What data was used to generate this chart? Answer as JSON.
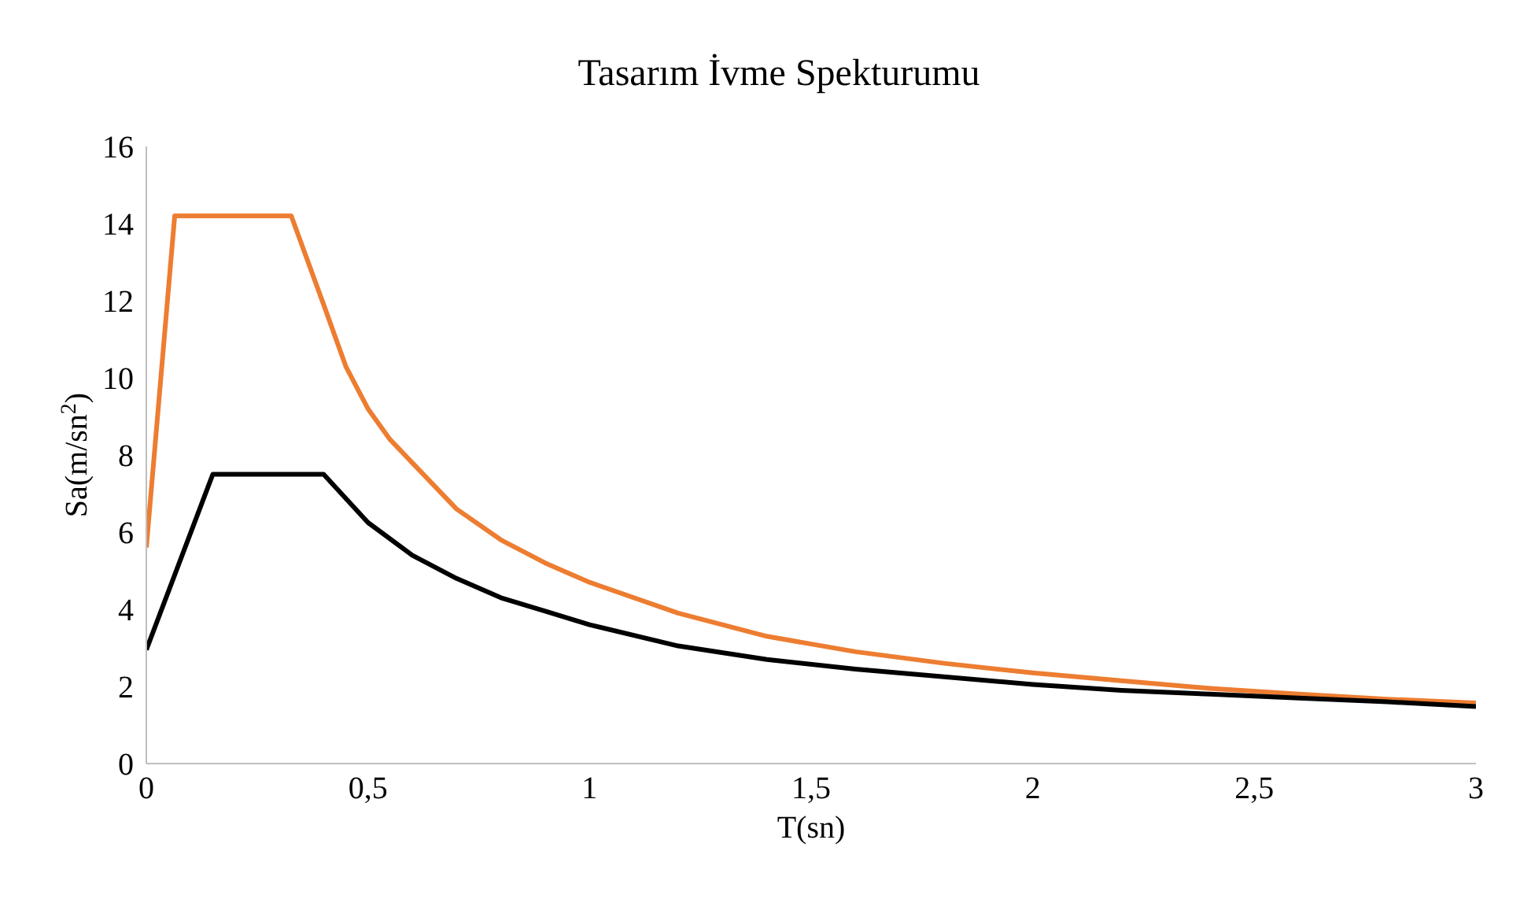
{
  "chart_data": {
    "type": "line",
    "title": "Tasarım İvme Spekturumu",
    "xlabel": "T(sn)",
    "ylabel": "Sa(m/sn$^{2}$)",
    "xlim": [
      0,
      3
    ],
    "ylim": [
      0,
      16
    ],
    "xticks": [
      0,
      {
        "value": 0.5,
        "label": "0,5"
      },
      1,
      {
        "value": 1.5,
        "label": "1,5"
      },
      2,
      {
        "value": 2.5,
        "label": "2,5"
      },
      3
    ],
    "yticks": [
      0,
      2,
      4,
      6,
      8,
      10,
      12,
      14,
      16
    ],
    "marker": "none",
    "line_style": "solid",
    "series": [
      {
        "color": "#ed7d31",
        "x": [
          0,
          0.064,
          0.327,
          0.4,
          0.45,
          0.5,
          0.55,
          0.6,
          0.7,
          0.8,
          0.9,
          1.0,
          1.2,
          1.4,
          1.6,
          1.8,
          2.0,
          2.2,
          2.4,
          2.6,
          2.8,
          3.0
        ],
        "values": [
          5.6,
          14.2,
          14.2,
          11.9,
          10.3,
          9.2,
          8.4,
          7.8,
          6.6,
          5.8,
          5.2,
          4.7,
          3.9,
          3.3,
          2.9,
          2.6,
          2.35,
          2.15,
          1.95,
          1.8,
          1.67,
          1.57
        ]
      },
      {
        "color": "#000000",
        "x": [
          0,
          0.15,
          0.4,
          0.5,
          0.6,
          0.7,
          0.8,
          0.9,
          1.0,
          1.2,
          1.4,
          1.6,
          1.8,
          2.0,
          2.2,
          2.4,
          2.6,
          2.8,
          3.0
        ],
        "values": [
          2.95,
          7.5,
          7.5,
          6.25,
          5.4,
          4.8,
          4.3,
          3.95,
          3.6,
          3.05,
          2.7,
          2.45,
          2.25,
          2.05,
          1.9,
          1.8,
          1.7,
          1.6,
          1.48
        ]
      }
    ]
  }
}
